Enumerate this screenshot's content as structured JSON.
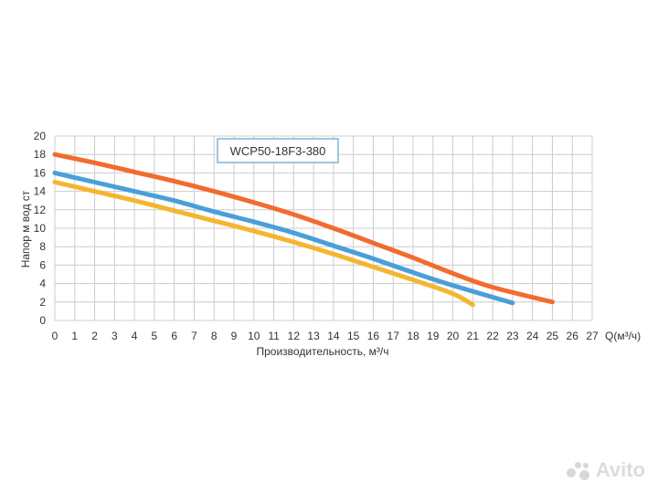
{
  "chart_data": {
    "type": "line",
    "title": "WCP50-18F3-380",
    "xlabel": "Производительность, м³/ч",
    "xunit_label": "Q(м³/ч)",
    "ylabel": "Напор м вод ст",
    "xlim": [
      0,
      27
    ],
    "ylim": [
      0,
      20
    ],
    "x_ticks": [
      0,
      1,
      2,
      3,
      4,
      5,
      6,
      7,
      8,
      9,
      10,
      11,
      12,
      13,
      14,
      15,
      16,
      17,
      18,
      19,
      20,
      21,
      22,
      23,
      24,
      25,
      26,
      27
    ],
    "y_ticks": [
      0,
      2,
      4,
      6,
      8,
      10,
      12,
      14,
      16,
      18,
      20
    ],
    "grid": true,
    "series": [
      {
        "name": "orange",
        "color": "#f26b2f",
        "points": [
          [
            0,
            18
          ],
          [
            2,
            17.1
          ],
          [
            4,
            16.1
          ],
          [
            6,
            15.1
          ],
          [
            8,
            14
          ],
          [
            10,
            12.8
          ],
          [
            12,
            11.5
          ],
          [
            14,
            10
          ],
          [
            16,
            8.4
          ],
          [
            18,
            6.8
          ],
          [
            20,
            5.1
          ],
          [
            22,
            3.6
          ],
          [
            25,
            2
          ]
        ]
      },
      {
        "name": "blue",
        "color": "#4a9fd8",
        "points": [
          [
            0,
            16
          ],
          [
            2,
            15
          ],
          [
            4,
            14
          ],
          [
            6,
            13
          ],
          [
            8,
            11.8
          ],
          [
            10,
            10.7
          ],
          [
            12,
            9.5
          ],
          [
            14,
            8.1
          ],
          [
            16,
            6.7
          ],
          [
            18,
            5.2
          ],
          [
            20,
            3.8
          ],
          [
            23,
            1.9
          ]
        ]
      },
      {
        "name": "yellow",
        "color": "#f5b530",
        "points": [
          [
            0,
            15
          ],
          [
            2,
            14
          ],
          [
            4,
            13
          ],
          [
            6,
            11.9
          ],
          [
            8,
            10.8
          ],
          [
            10,
            9.7
          ],
          [
            12,
            8.5
          ],
          [
            14,
            7.2
          ],
          [
            16,
            5.8
          ],
          [
            18,
            4.4
          ],
          [
            20,
            2.9
          ],
          [
            21,
            1.7
          ]
        ]
      }
    ]
  },
  "watermark": {
    "text": "Avito"
  }
}
